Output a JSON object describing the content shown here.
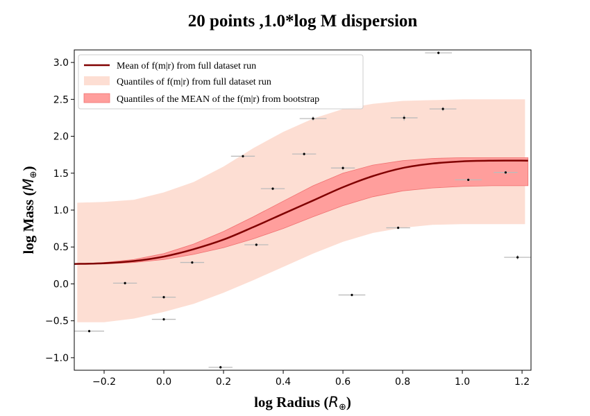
{
  "chart_data": {
    "type": "scatter",
    "title": "20 points ,1.0*log M dispersion",
    "xlabel_text": "log Radius (",
    "xlabel_sym": "R",
    "xlabel_sub": "⊕",
    "xlabel_close": ")",
    "ylabel_text": "log Mass (",
    "ylabel_sym": "M",
    "ylabel_sub": "⊕",
    "ylabel_close": ")",
    "xlim": [
      -0.3,
      1.23
    ],
    "ylim": [
      -1.17,
      3.17
    ],
    "xticks": [
      -0.2,
      0.0,
      0.2,
      0.4,
      0.6,
      0.8,
      1.0,
      1.2
    ],
    "xtick_labels": [
      "−0.2",
      "0.0",
      "0.2",
      "0.4",
      "0.6",
      "0.8",
      "1.0",
      "1.2"
    ],
    "yticks": [
      -1.0,
      -0.5,
      0.0,
      0.5,
      1.0,
      1.5,
      2.0,
      2.5,
      3.0
    ],
    "ytick_labels": [
      "−1.0",
      "−0.5",
      "0.0",
      "0.5",
      "1.0",
      "1.5",
      "2.0",
      "2.5",
      "3.0"
    ],
    "grid": false,
    "legend_position": "upper-left",
    "legend": [
      {
        "label": "Mean of f(m|r) from full dataset run",
        "kind": "line",
        "color": "#800000"
      },
      {
        "label": "Quantiles of f(m|r) from full dataset run",
        "kind": "patch",
        "color": "#fdded3"
      },
      {
        "label": "Quantiles of the MEAN of the f(m|r) from bootstrap",
        "kind": "patch",
        "color": "#ff9e9c"
      }
    ],
    "colors": {
      "mean_line": "#800000",
      "outer_band": "#fdded3",
      "inner_band": "#ff9e9c",
      "inner_band_edge": "#f07070",
      "points": "#000000",
      "errorbars": "#bbbbbb"
    },
    "mean_curve": {
      "x": [
        -0.3,
        -0.2,
        -0.1,
        0.0,
        0.1,
        0.2,
        0.3,
        0.4,
        0.5,
        0.6,
        0.7,
        0.8,
        0.9,
        1.0,
        1.1,
        1.22
      ],
      "y": [
        0.27,
        0.28,
        0.31,
        0.37,
        0.47,
        0.6,
        0.77,
        0.95,
        1.13,
        1.31,
        1.46,
        1.57,
        1.63,
        1.66,
        1.67,
        1.67
      ]
    },
    "outer_band": {
      "x": [
        -0.29,
        -0.2,
        -0.1,
        0.0,
        0.1,
        0.2,
        0.3,
        0.4,
        0.5,
        0.6,
        0.7,
        0.8,
        0.9,
        1.0,
        1.1,
        1.21
      ],
      "lower": [
        -0.52,
        -0.52,
        -0.47,
        -0.38,
        -0.27,
        -0.12,
        0.05,
        0.23,
        0.41,
        0.57,
        0.69,
        0.76,
        0.8,
        0.81,
        0.81,
        0.81
      ],
      "upper": [
        1.1,
        1.11,
        1.14,
        1.24,
        1.38,
        1.59,
        1.84,
        2.06,
        2.24,
        2.37,
        2.44,
        2.48,
        2.49,
        2.5,
        2.5,
        2.5
      ]
    },
    "inner_band": {
      "x": [
        -0.3,
        -0.2,
        -0.1,
        0.0,
        0.1,
        0.2,
        0.3,
        0.4,
        0.5,
        0.6,
        0.7,
        0.8,
        0.9,
        1.0,
        1.1,
        1.22
      ],
      "lower": [
        0.27,
        0.27,
        0.29,
        0.33,
        0.4,
        0.49,
        0.61,
        0.75,
        0.91,
        1.06,
        1.18,
        1.26,
        1.3,
        1.32,
        1.33,
        1.33
      ],
      "upper": [
        0.27,
        0.29,
        0.33,
        0.41,
        0.54,
        0.71,
        0.91,
        1.12,
        1.33,
        1.5,
        1.61,
        1.67,
        1.7,
        1.71,
        1.71,
        1.71
      ]
    },
    "points": [
      {
        "x": -0.25,
        "y": -0.64,
        "xerr": 0.05,
        "yerr": 0.02
      },
      {
        "x": -0.13,
        "y": 0.01,
        "xerr": 0.04,
        "yerr": 0.02
      },
      {
        "x": 0.0,
        "y": -0.18,
        "xerr": 0.04,
        "yerr": 0.02
      },
      {
        "x": 0.0,
        "y": -0.48,
        "xerr": 0.04,
        "yerr": 0.02
      },
      {
        "x": 0.095,
        "y": 0.29,
        "xerr": 0.04,
        "yerr": 0.02
      },
      {
        "x": 0.19,
        "y": -1.13,
        "xerr": 0.04,
        "yerr": 0.02
      },
      {
        "x": 0.265,
        "y": 1.73,
        "xerr": 0.04,
        "yerr": 0.02
      },
      {
        "x": 0.31,
        "y": 0.53,
        "xerr": 0.04,
        "yerr": 0.02
      },
      {
        "x": 0.365,
        "y": 1.29,
        "xerr": 0.04,
        "yerr": 0.02
      },
      {
        "x": 0.47,
        "y": 1.76,
        "xerr": 0.04,
        "yerr": 0.02
      },
      {
        "x": 0.5,
        "y": 2.24,
        "xerr": 0.045,
        "yerr": 0.03
      },
      {
        "x": 0.6,
        "y": 1.57,
        "xerr": 0.04,
        "yerr": 0.03
      },
      {
        "x": 0.63,
        "y": -0.15,
        "xerr": 0.045,
        "yerr": 0.02
      },
      {
        "x": 0.785,
        "y": 0.76,
        "xerr": 0.04,
        "yerr": 0.02
      },
      {
        "x": 0.805,
        "y": 2.25,
        "xerr": 0.045,
        "yerr": 0.04
      },
      {
        "x": 0.92,
        "y": 3.13,
        "xerr": 0.045,
        "yerr": 0.02
      },
      {
        "x": 0.935,
        "y": 2.37,
        "xerr": 0.045,
        "yerr": 0.03
      },
      {
        "x": 1.02,
        "y": 1.41,
        "xerr": 0.045,
        "yerr": 0.02
      },
      {
        "x": 1.145,
        "y": 1.51,
        "xerr": 0.04,
        "yerr": 0.03
      },
      {
        "x": 1.185,
        "y": 0.36,
        "xerr": 0.045,
        "yerr": 0.03
      }
    ]
  }
}
